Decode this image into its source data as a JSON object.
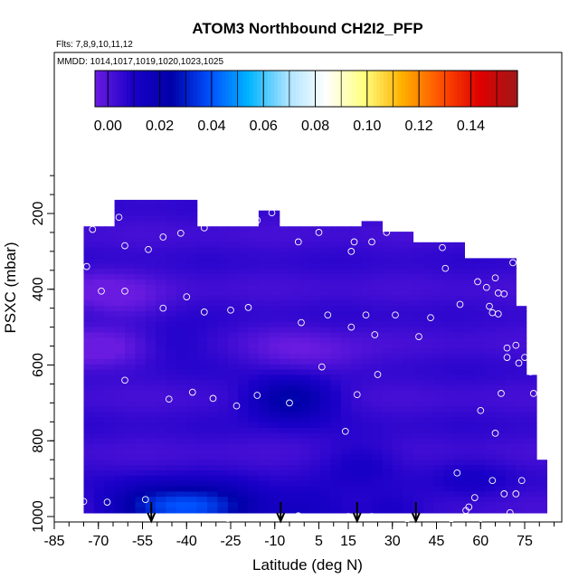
{
  "chart_data": {
    "type": "heatmap",
    "title": "ATOM3 Northbound CH2I2_PFP",
    "subtitle_flights": "Flts: 7,8,9,10,11,12",
    "subtitle_dates": "MMDD: 1014,1017,1019,1020,1023,1025",
    "xlabel": "Latitude (deg N)",
    "ylabel": "PSXC (mbar)",
    "xlim": [
      -85,
      88
    ],
    "ylim": [
      1000,
      100
    ],
    "y_reversed": true,
    "x_ticks": [
      -85,
      -70,
      -55,
      -40,
      -25,
      -10,
      5,
      15,
      30,
      45,
      60,
      75
    ],
    "x_tick_labels": [
      "-85",
      "-70",
      "-55",
      "-40",
      "-25",
      "-10",
      "5",
      "15",
      "30",
      "45",
      "60",
      "75"
    ],
    "y_ticks": [
      200,
      400,
      600,
      800,
      1000
    ],
    "y_tick_labels": [
      "200",
      "400",
      "600",
      "800",
      "1000"
    ],
    "colorbar": {
      "ticks": [
        0.0,
        0.02,
        0.04,
        0.06,
        0.08,
        0.1,
        0.12,
        0.14
      ],
      "tick_labels": [
        "0.00",
        "0.02",
        "0.04",
        "0.06",
        "0.08",
        "0.10",
        "0.12",
        "0.14"
      ],
      "min": -0.005,
      "max": 0.158,
      "colors": [
        "#6a1be0",
        "#1a00c8",
        "#0000a8",
        "#0050ff",
        "#00b4ff",
        "#a8e2ff",
        "#ffffff",
        "#ffff80",
        "#ffb000",
        "#ff5000",
        "#e00000",
        "#a01818"
      ]
    },
    "field": {
      "background_value": 0.004,
      "envelope": [
        [
          -75,
          960
        ],
        [
          -75,
          240
        ],
        [
          -65,
          240
        ],
        [
          -65,
          165
        ],
        [
          -35,
          165
        ],
        [
          -35,
          228
        ],
        [
          -14,
          228
        ],
        [
          -14,
          195
        ],
        [
          -7,
          195
        ],
        [
          -7,
          240
        ],
        [
          20,
          240
        ],
        [
          20,
          225
        ],
        [
          28,
          225
        ],
        [
          28,
          255
        ],
        [
          38,
          255
        ],
        [
          38,
          270
        ],
        [
          52,
          270
        ],
        [
          55,
          320
        ],
        [
          71,
          320
        ],
        [
          76,
          540
        ],
        [
          82,
          940
        ],
        [
          83,
          990
        ],
        [
          -75,
          990
        ]
      ],
      "anomalies": [
        {
          "lat": -80,
          "p": 560,
          "value": -0.004
        },
        {
          "lat": -72,
          "p": 400,
          "value": -0.003
        },
        {
          "lat": -66,
          "p": 560,
          "value": -0.003
        },
        {
          "lat": -60,
          "p": 430,
          "value": -0.002
        },
        {
          "lat": -45,
          "p": 540,
          "value": 0.01
        },
        {
          "lat": -5,
          "p": 560,
          "value": -0.002
        },
        {
          "lat": 10,
          "p": 580,
          "value": -0.001
        },
        {
          "lat": -5,
          "p": 690,
          "value": 0.028
        },
        {
          "lat": 20,
          "p": 850,
          "value": 0.011
        },
        {
          "lat": -55,
          "p": 970,
          "value": 0.024
        },
        {
          "lat": -40,
          "p": 975,
          "value": 0.03
        },
        {
          "lat": -25,
          "p": 970,
          "value": 0.021
        },
        {
          "lat": 0,
          "p": 980,
          "value": 0.014
        },
        {
          "lat": 30,
          "p": 980,
          "value": 0.012
        },
        {
          "lat": 58,
          "p": 900,
          "value": 0.009
        },
        {
          "lat": 65,
          "p": 470,
          "value": 0.003
        }
      ]
    },
    "samples": [
      [
        -72,
        242
      ],
      [
        -63,
        210
      ],
      [
        -61,
        285
      ],
      [
        -53,
        295
      ],
      [
        -48,
        262
      ],
      [
        -42,
        252
      ],
      [
        -34,
        238
      ],
      [
        -22,
        218
      ],
      [
        -16,
        218
      ],
      [
        -11,
        198
      ],
      [
        -2,
        275
      ],
      [
        5,
        250
      ],
      [
        16,
        300
      ],
      [
        17,
        275
      ],
      [
        23,
        275
      ],
      [
        28,
        250
      ],
      [
        37,
        228
      ],
      [
        47,
        290
      ],
      [
        -74,
        340
      ],
      [
        -69,
        405
      ],
      [
        -61,
        405
      ],
      [
        -48,
        450
      ],
      [
        -40,
        420
      ],
      [
        -34,
        460
      ],
      [
        -25,
        455
      ],
      [
        -19,
        448
      ],
      [
        -1,
        488
      ],
      [
        8,
        468
      ],
      [
        16,
        500
      ],
      [
        21,
        468
      ],
      [
        24,
        520
      ],
      [
        31,
        468
      ],
      [
        39,
        525
      ],
      [
        48,
        345
      ],
      [
        53,
        440
      ],
      [
        59,
        380
      ],
      [
        62,
        395
      ],
      [
        63,
        445
      ],
      [
        64,
        462
      ],
      [
        65,
        370
      ],
      [
        66,
        410
      ],
      [
        66,
        465
      ],
      [
        68,
        412
      ],
      [
        69,
        555
      ],
      [
        72,
        548
      ],
      [
        71,
        330
      ],
      [
        73,
        595
      ],
      [
        75,
        580
      ],
      [
        76,
        320
      ],
      [
        77,
        618
      ],
      [
        78,
        675
      ],
      [
        78,
        415
      ],
      [
        81,
        540
      ],
      [
        84,
        435
      ],
      [
        -79,
        620
      ],
      [
        -61,
        640
      ],
      [
        -46,
        690
      ],
      [
        -38,
        672
      ],
      [
        -31,
        688
      ],
      [
        -23,
        708
      ],
      [
        -16,
        680
      ],
      [
        -5,
        700
      ],
      [
        6,
        605
      ],
      [
        14,
        775
      ],
      [
        18,
        678
      ],
      [
        25,
        625
      ],
      [
        43,
        475
      ],
      [
        60,
        720
      ],
      [
        65,
        780
      ],
      [
        67,
        675
      ],
      [
        69,
        580
      ],
      [
        -75,
        960
      ],
      [
        -67,
        962
      ],
      [
        -54,
        955
      ],
      [
        -26,
        1005
      ],
      [
        -15,
        1002
      ],
      [
        -2,
        998
      ],
      [
        15,
        1000
      ],
      [
        23,
        1000
      ],
      [
        26,
        1002
      ],
      [
        35,
        1006
      ],
      [
        45,
        1003
      ],
      [
        50,
        1006
      ],
      [
        53,
        1002
      ],
      [
        55,
        984
      ],
      [
        58,
        950
      ],
      [
        60,
        1005
      ],
      [
        52,
        885
      ],
      [
        64,
        905
      ],
      [
        70,
        990
      ],
      [
        72,
        940
      ],
      [
        74,
        905
      ],
      [
        68,
        940
      ],
      [
        56,
        975
      ],
      [
        38,
        1000
      ]
    ],
    "flight_markers_lat": [
      -52,
      -8,
      18,
      38
    ]
  }
}
